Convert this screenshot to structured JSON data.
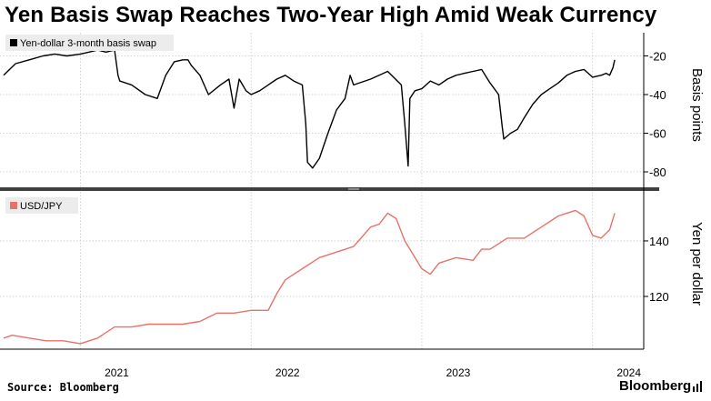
{
  "title": "Yen Basis Swap Reaches Two-Year High Amid Weak Currency",
  "source": "Source: Bloomberg",
  "brand": "Bloomberg",
  "chart_data": [
    {
      "type": "line",
      "legend": "Yen-dollar 3-month basis swap",
      "ylabel": "Basis points",
      "ylim": [
        -88,
        -8
      ],
      "yticks": [
        -20,
        -40,
        -60,
        -80
      ],
      "ytick_labels": [
        "-20",
        "-40",
        "-60",
        "-80"
      ],
      "color": "#000000",
      "xlim": [
        2020.55,
        2024.3
      ],
      "x": [
        2020.55,
        2020.62,
        2020.7,
        2020.78,
        2020.85,
        2020.92,
        2021.0,
        2021.05,
        2021.1,
        2021.15,
        2021.2,
        2021.22,
        2021.23,
        2021.3,
        2021.38,
        2021.45,
        2021.5,
        2021.55,
        2021.6,
        2021.63,
        2021.65,
        2021.7,
        2021.75,
        2021.82,
        2021.87,
        2021.9,
        2021.93,
        2021.97,
        2022.0,
        2022.05,
        2022.1,
        2022.15,
        2022.2,
        2022.25,
        2022.3,
        2022.32,
        2022.33,
        2022.36,
        2022.4,
        2022.45,
        2022.5,
        2022.55,
        2022.58,
        2022.6,
        2022.7,
        2022.8,
        2022.88,
        2022.9,
        2022.92,
        2022.93,
        2022.96,
        2023.0,
        2023.05,
        2023.1,
        2023.15,
        2023.2,
        2023.25,
        2023.3,
        2023.35,
        2023.4,
        2023.45,
        2023.47,
        2023.48,
        2023.52,
        2023.56,
        2023.6,
        2023.65,
        2023.7,
        2023.75,
        2023.8,
        2023.85,
        2023.9,
        2023.95,
        2024.0,
        2024.05,
        2024.08,
        2024.1,
        2024.12,
        2024.13
      ],
      "values": [
        -30,
        -24,
        -22,
        -20,
        -19,
        -20,
        -19,
        -18,
        -17,
        -18,
        -17,
        -30,
        -33,
        -35,
        -40,
        -42,
        -30,
        -23,
        -22,
        -22,
        -25,
        -30,
        -40,
        -35,
        -32,
        -47,
        -32,
        -38,
        -40,
        -38,
        -35,
        -32,
        -30,
        -33,
        -35,
        -55,
        -75,
        -78,
        -73,
        -60,
        -48,
        -42,
        -30,
        -35,
        -32,
        -28,
        -35,
        -55,
        -77,
        -42,
        -38,
        -37,
        -33,
        -35,
        -32,
        -30,
        -29,
        -28,
        -27,
        -34,
        -40,
        -56,
        -63,
        -60,
        -58,
        -52,
        -45,
        -40,
        -37,
        -34,
        -30,
        -28,
        -27,
        -31,
        -30,
        -29,
        -30,
        -26,
        -22
      ]
    },
    {
      "type": "line",
      "legend": "USD/JPY",
      "ylabel": "Yen per dollar",
      "ylim": [
        101,
        158
      ],
      "yticks": [
        140,
        120
      ],
      "ytick_labels": [
        "140",
        "120"
      ],
      "color": "#e8726a",
      "xlim": [
        2020.55,
        2024.3
      ],
      "x": [
        2020.55,
        2020.6,
        2020.7,
        2020.8,
        2020.9,
        2021.0,
        2021.1,
        2021.2,
        2021.3,
        2021.4,
        2021.5,
        2021.6,
        2021.7,
        2021.8,
        2021.9,
        2022.0,
        2022.1,
        2022.15,
        2022.2,
        2022.3,
        2022.4,
        2022.5,
        2022.6,
        2022.7,
        2022.75,
        2022.8,
        2022.85,
        2022.9,
        2022.95,
        2023.0,
        2023.05,
        2023.1,
        2023.2,
        2023.3,
        2023.35,
        2023.4,
        2023.5,
        2023.6,
        2023.7,
        2023.8,
        2023.85,
        2023.9,
        2023.95,
        2024.0,
        2024.05,
        2024.1,
        2024.13
      ],
      "values": [
        105,
        106,
        105,
        104,
        104,
        103,
        105,
        109,
        109,
        110,
        110,
        110,
        111,
        114,
        114,
        115,
        115,
        121,
        126,
        130,
        134,
        136,
        138,
        145,
        146,
        150,
        148,
        140,
        135,
        130,
        128,
        132,
        134,
        133,
        137,
        137,
        141,
        141,
        145,
        149,
        150,
        151,
        149,
        142,
        141,
        144,
        150
      ]
    }
  ],
  "x_axis": {
    "ticks": [
      2021.0,
      2022.0,
      2023.0,
      2024.0
    ],
    "labels": [
      "2021",
      "2022",
      "2023",
      "2024"
    ]
  }
}
